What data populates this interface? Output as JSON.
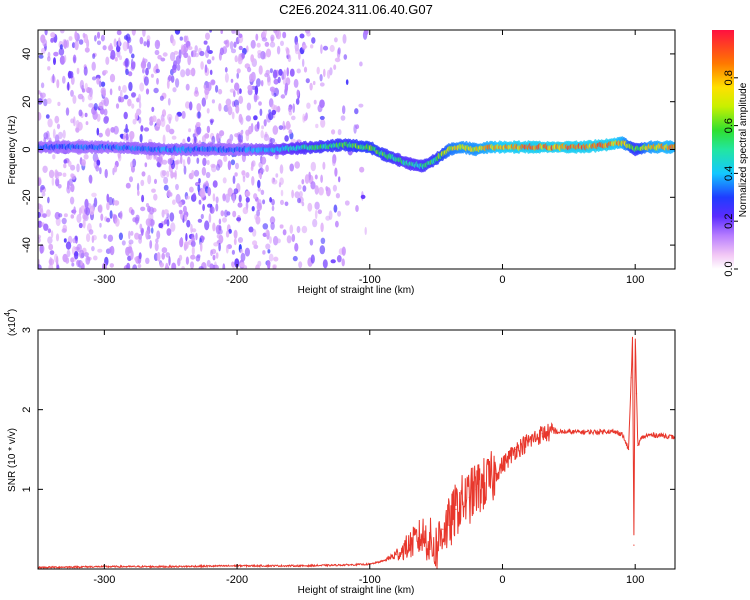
{
  "figure": {
    "title": "C2E6.2024.311.06.40.G07"
  },
  "chart_data": [
    {
      "type": "heatmap",
      "title": "C2E6.2024.311.06.40.G07",
      "xlabel": "Height of straight line (km)",
      "ylabel": "Frequency (Hz)",
      "xlim": [
        -350,
        130
      ],
      "ylim": [
        -50,
        50
      ],
      "xticks": [
        -300,
        -200,
        -100,
        0,
        100
      ],
      "yticks": [
        -40,
        -20,
        0,
        20,
        40
      ],
      "xtick_labels": [
        "-300",
        "-200",
        "-100",
        "0",
        "100"
      ],
      "ytick_labels": [
        "-40",
        "-20",
        "0",
        "20",
        "40"
      ],
      "colorbar": {
        "label": "Normalized spectral amplitude",
        "range": [
          0,
          1
        ],
        "ticks": [
          0.0,
          0.2,
          0.4,
          0.6,
          0.8
        ],
        "tick_labels": [
          "0.0",
          "0.2",
          "0.4",
          "0.6",
          "0.8"
        ]
      },
      "ridge": {
        "x": [
          -350,
          -300,
          -250,
          -200,
          -170,
          -140,
          -120,
          -100,
          -90,
          -80,
          -70,
          -60,
          -50,
          -40,
          -30,
          -20,
          -10,
          0,
          20,
          40,
          60,
          80,
          90,
          100,
          110,
          120,
          130
        ],
        "frequency": [
          1,
          1,
          0,
          0,
          0,
          1,
          2,
          1,
          -2,
          -4,
          -6,
          -7,
          -4,
          0,
          1,
          0,
          1,
          1,
          1,
          1,
          1,
          2,
          3,
          0,
          1,
          1,
          1
        ],
        "amplitude": [
          0.35,
          0.35,
          0.38,
          0.35,
          0.45,
          0.55,
          0.6,
          0.65,
          0.6,
          0.55,
          0.5,
          0.55,
          0.6,
          0.75,
          0.8,
          0.8,
          0.85,
          0.9,
          0.92,
          0.92,
          0.92,
          0.92,
          0.85,
          0.6,
          0.8,
          0.85,
          0.85
        ]
      },
      "noise_extent_x": [
        -350,
        -110
      ]
    },
    {
      "type": "line",
      "xlabel": "Height of straight line (km)",
      "ylabel": "SNR (10 * v/v)",
      "yscale_label": "(x10",
      "yscale_exponent": "4",
      "yscale_suffix": ")",
      "xlim": [
        -350,
        130
      ],
      "ylim": [
        0,
        3
      ],
      "xticks": [
        -300,
        -200,
        -100,
        0,
        100
      ],
      "yticks": [
        1,
        2,
        3
      ],
      "xtick_labels": [
        "-300",
        "-200",
        "-100",
        "0",
        "100"
      ],
      "ytick_labels": [
        "1",
        "2",
        "3"
      ],
      "series": [
        {
          "name": "SNR",
          "color": "#e8372c",
          "x": [
            -350,
            -300,
            -250,
            -200,
            -150,
            -120,
            -100,
            -90,
            -80,
            -70,
            -60,
            -55,
            -50,
            -45,
            -40,
            -35,
            -30,
            -25,
            -20,
            -15,
            -10,
            -5,
            0,
            10,
            20,
            30,
            40,
            50,
            60,
            70,
            80,
            90,
            95,
            97,
            98,
            99,
            100,
            101,
            102,
            105,
            110,
            120,
            130
          ],
          "y": [
            0.02,
            0.03,
            0.03,
            0.04,
            0.04,
            0.05,
            0.06,
            0.1,
            0.18,
            0.3,
            0.42,
            0.35,
            0.25,
            0.5,
            0.55,
            0.75,
            0.85,
            0.9,
            1.0,
            1.05,
            1.1,
            1.2,
            1.3,
            1.5,
            1.6,
            1.7,
            1.72,
            1.72,
            1.72,
            1.72,
            1.73,
            1.7,
            1.5,
            2.4,
            2.9,
            0.3,
            3.0,
            2.2,
            1.55,
            1.65,
            1.68,
            1.68,
            1.65
          ]
        }
      ]
    }
  ]
}
